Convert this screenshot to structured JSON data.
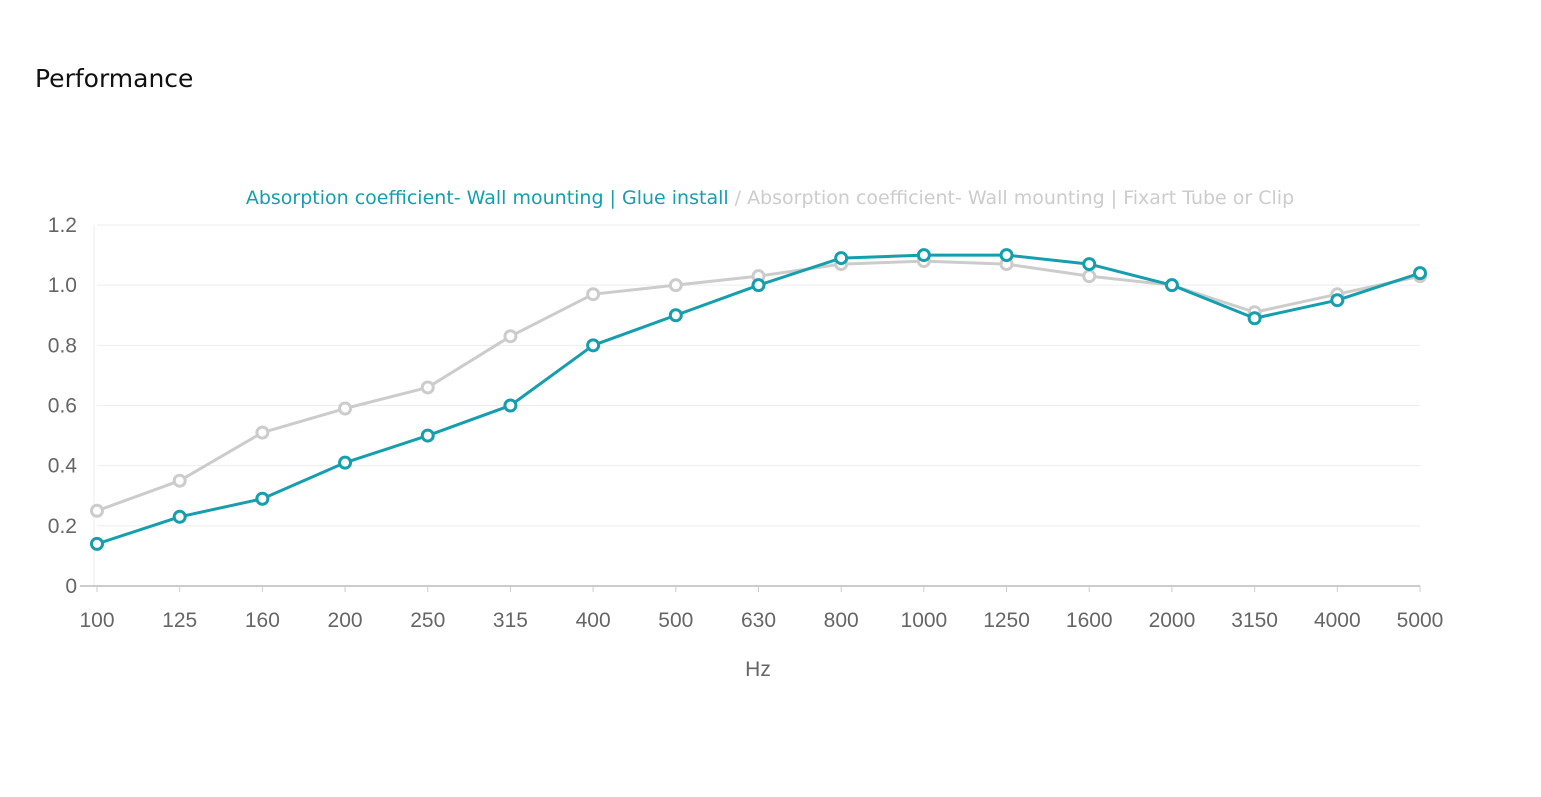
{
  "page": {
    "title": "Performance"
  },
  "chart_data": {
    "type": "line",
    "title": "",
    "xlabel": "Hz",
    "ylabel": "",
    "categories": [
      "100",
      "125",
      "160",
      "200",
      "250",
      "315",
      "400",
      "500",
      "630",
      "800",
      "1000",
      "1250",
      "1600",
      "2000",
      "3150",
      "4000",
      "5000"
    ],
    "ylim": [
      0,
      1.2
    ],
    "yticks": [
      "0",
      "0.2",
      "0.4",
      "0.6",
      "0.8",
      "1.0",
      "1.2"
    ],
    "grid": true,
    "legend_position": "top-center",
    "legend_separator": "/",
    "series": [
      {
        "name": "Absorption coefficient- Wall mounting | Glue install",
        "color": "#159eae",
        "values": [
          0.14,
          0.23,
          0.29,
          0.41,
          0.5,
          0.6,
          0.8,
          0.9,
          1.0,
          1.09,
          1.1,
          1.1,
          1.07,
          1.0,
          0.89,
          0.95,
          1.04
        ]
      },
      {
        "name": "Absorption coefficient- Wall mounting | Fixart Tube or Clip",
        "color": "#cccccc",
        "values": [
          0.25,
          0.35,
          0.51,
          0.59,
          0.66,
          0.83,
          0.97,
          1.0,
          1.03,
          1.07,
          1.08,
          1.07,
          1.03,
          1.0,
          0.91,
          0.97,
          1.03
        ]
      }
    ]
  }
}
